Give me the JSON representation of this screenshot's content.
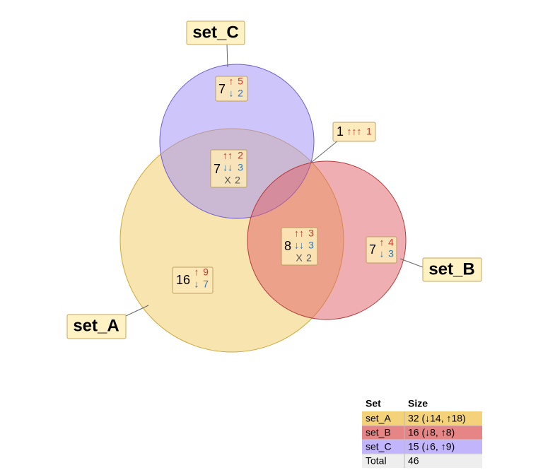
{
  "sets": [
    {
      "label": "set_A"
    },
    {
      "label": "set_B"
    },
    {
      "label": "set_C"
    }
  ],
  "regions": [
    {
      "id": "A_only",
      "count": 16,
      "up": "↑",
      "up_count": 9,
      "down": "↓",
      "down_count": 7
    },
    {
      "id": "B_only",
      "count": 7,
      "up": "↑",
      "up_count": 4,
      "down": "↓",
      "down_count": 3
    },
    {
      "id": "C_only",
      "count": 7,
      "up": "↑",
      "up_count": 5,
      "down": "↓",
      "down_count": 2
    },
    {
      "id": "A_C",
      "count": 7,
      "up": "↑↑",
      "up_count": 2,
      "down": "↓↓",
      "down_count": 3,
      "mixed": "X",
      "mixed_count": 2
    },
    {
      "id": "A_B",
      "count": 8,
      "up": "↑↑",
      "up_count": 3,
      "down": "↓↓",
      "down_count": 3,
      "mixed": "X",
      "mixed_count": 2
    },
    {
      "id": "A_B_C",
      "count": 1,
      "up": "↑↑↑",
      "up_count": 1
    }
  ],
  "table": {
    "header": [
      "Set",
      "Size"
    ],
    "rows": [
      [
        "set_A",
        "32 (↓14, ↑18)"
      ],
      [
        "set_B",
        "16 (↓8, ↑8)"
      ],
      [
        "set_C",
        "15 (↓6, ↑9)"
      ],
      [
        "Total",
        "46"
      ]
    ]
  }
}
